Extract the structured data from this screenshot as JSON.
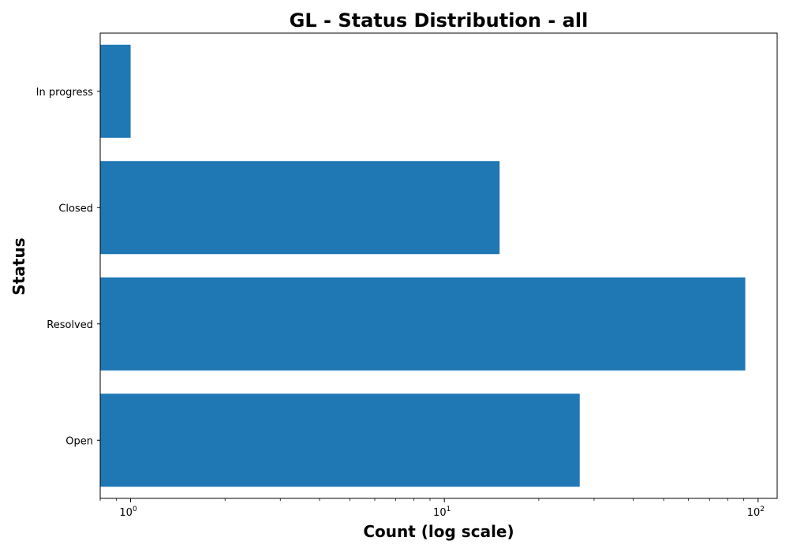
{
  "chart_data": {
    "type": "bar",
    "orientation": "horizontal",
    "title": "GL - Status Distribution - all",
    "xlabel": "Count (log scale)",
    "ylabel": "Status",
    "x_scale": "log",
    "xlim": [
      0.8,
      115
    ],
    "categories": [
      "Open",
      "Resolved",
      "Closed",
      "In progress"
    ],
    "values": [
      27,
      91,
      15,
      1
    ],
    "x_ticks": [
      1,
      10,
      100
    ],
    "x_tick_labels": [
      {
        "base": "10",
        "exp": "0"
      },
      {
        "base": "10",
        "exp": "1"
      },
      {
        "base": "10",
        "exp": "2"
      }
    ],
    "bar_color": "#1f77b4",
    "grid": false,
    "legend": "none"
  }
}
